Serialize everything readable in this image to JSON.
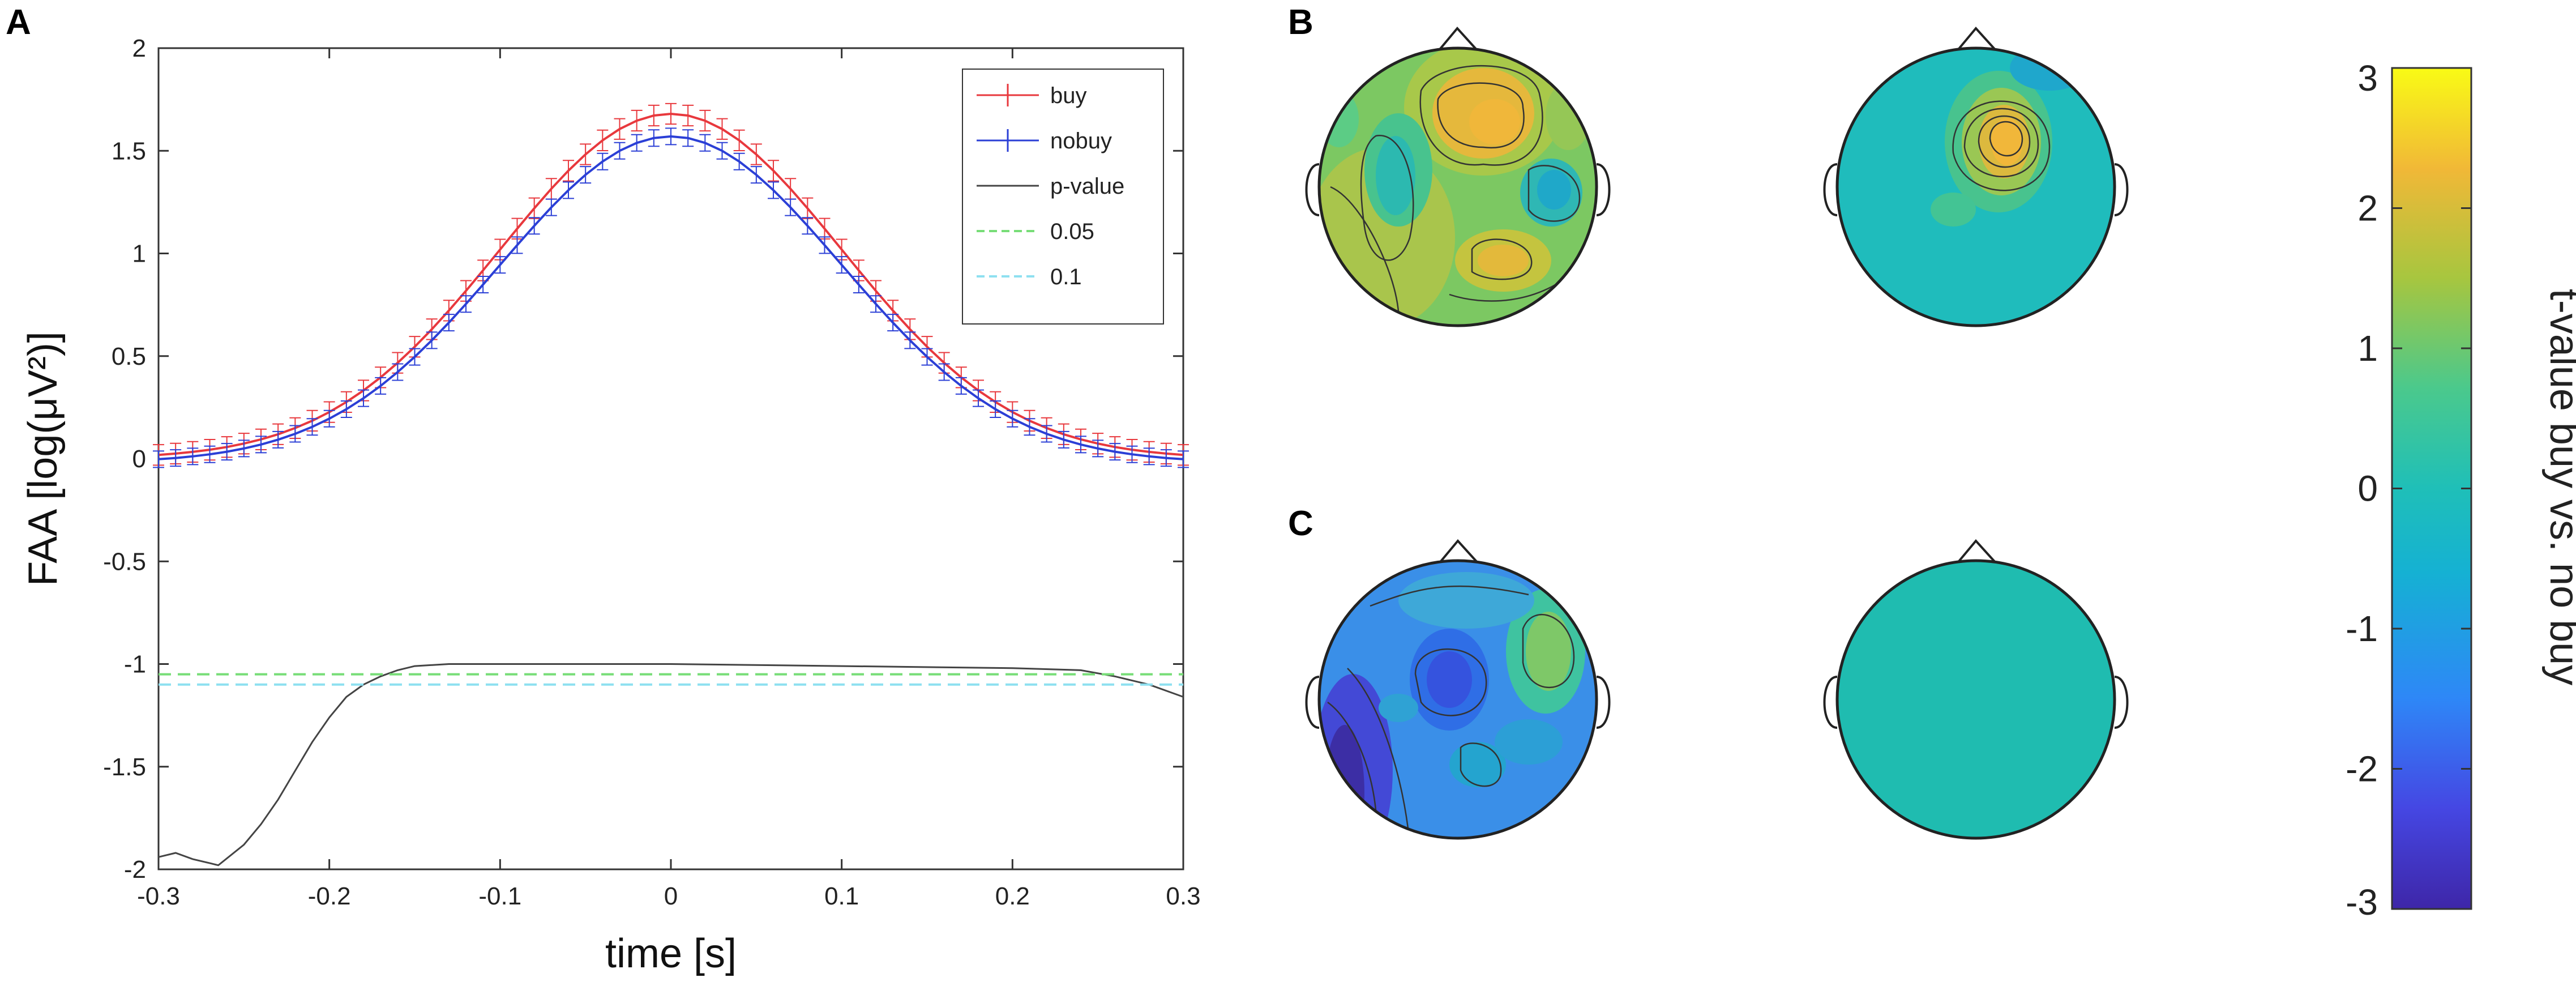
{
  "panels": {
    "a": "A",
    "b": "B",
    "c": "C"
  },
  "chart_data": {
    "type": "line",
    "title": "",
    "xlabel": "time [s]",
    "ylabel": "FAA [log(μV²)]",
    "xlim": [
      -0.3,
      0.3
    ],
    "ylim": [
      -2,
      2
    ],
    "xticks": [
      "-0.3",
      "-0.2",
      "-0.1",
      "0",
      "0.1",
      "0.2",
      "0.3"
    ],
    "yticks": [
      "2",
      "1.5",
      "1",
      "0.5",
      "0",
      "-0.5",
      "-1",
      "-1.5",
      "-2"
    ],
    "legend": [
      "buy",
      "nobuy",
      "p-value",
      "0.05",
      "0.1"
    ],
    "legend_position": "top-right",
    "series": [
      {
        "name": "buy",
        "color": "#e8383d",
        "peak": 1.68,
        "baseline": 0.0,
        "sigma": 0.1,
        "error": 0.05
      },
      {
        "name": "nobuy",
        "color": "#2b3fd6",
        "peak": 1.57,
        "baseline": -0.02,
        "sigma": 0.1,
        "error": 0.04
      },
      {
        "name": "p-value",
        "color": "#444444",
        "x": [
          -0.3,
          -0.29,
          -0.28,
          -0.27,
          -0.265,
          -0.25,
          -0.24,
          -0.23,
          -0.22,
          -0.21,
          -0.2,
          -0.19,
          -0.18,
          -0.17,
          -0.16,
          -0.15,
          -0.13,
          -0.1,
          0.0,
          0.1,
          0.2,
          0.24,
          0.26,
          0.28,
          0.3
        ],
        "y": [
          -1.94,
          -1.92,
          -1.95,
          -1.97,
          -1.98,
          -1.88,
          -1.78,
          -1.66,
          -1.52,
          -1.38,
          -1.26,
          -1.16,
          -1.1,
          -1.06,
          -1.03,
          -1.01,
          -1.0,
          -1.0,
          -1.0,
          -1.01,
          -1.02,
          -1.03,
          -1.06,
          -1.1,
          -1.16
        ]
      },
      {
        "name": "0.05",
        "color": "#77dd77",
        "dashed": true,
        "y": -1.05
      },
      {
        "name": "0.1",
        "color": "#8ee0f0",
        "dashed": true,
        "y": -1.1
      }
    ],
    "colorbar": {
      "title": "t-value buy vs. no buy",
      "ticks": [
        "3",
        "2",
        "1",
        "0",
        "-1",
        "-2",
        "-3"
      ],
      "range": [
        -3,
        3
      ]
    }
  }
}
